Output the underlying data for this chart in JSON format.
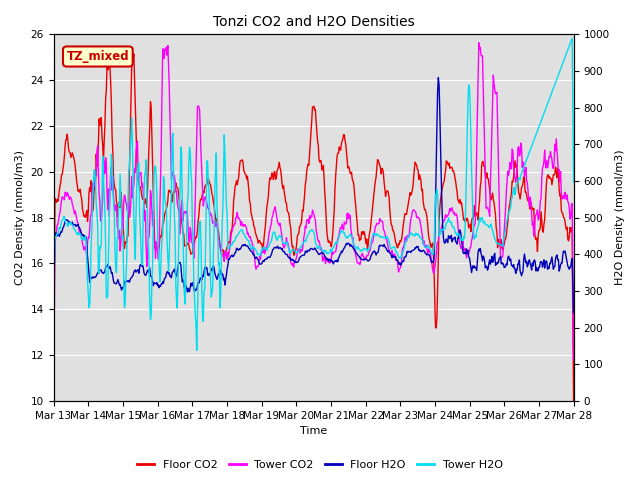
{
  "title": "Tonzi CO2 and H2O Densities",
  "xlabel": "Time",
  "ylabel_left": "CO2 Density (mmol/m3)",
  "ylabel_right": "H2O Density (mmol/m3)",
  "ylim_left": [
    10,
    26
  ],
  "ylim_right": [
    0,
    1000
  ],
  "annotation_text": "TZ_mixed",
  "annotation_facecolor": "#ffffcc",
  "annotation_edgecolor": "#cc0000",
  "line_colors": {
    "floor_co2": "#ee0000",
    "tower_co2": "#ff00ff",
    "floor_h2o": "#0000bb",
    "tower_h2o": "#00ddee"
  },
  "legend_labels": [
    "Floor CO2",
    "Tower CO2",
    "Floor H2O",
    "Tower H2O"
  ],
  "bg_color": "#e0e0e0",
  "xtick_labels": [
    "Mar 13",
    "Mar 14",
    "Mar 15",
    "Mar 16",
    "Mar 17",
    "Mar 18",
    "Mar 19",
    "Mar 20",
    "Mar 21",
    "Mar 22",
    "Mar 23",
    "Mar 24",
    "Mar 25",
    "Mar 26",
    "Mar 27",
    "Mar 28"
  ],
  "yticks_left": [
    10,
    12,
    14,
    16,
    18,
    20,
    22,
    24,
    26
  ],
  "yticks_right": [
    0,
    100,
    200,
    300,
    400,
    500,
    600,
    700,
    800,
    900,
    1000
  ],
  "figsize": [
    6.4,
    4.8
  ],
  "dpi": 100
}
